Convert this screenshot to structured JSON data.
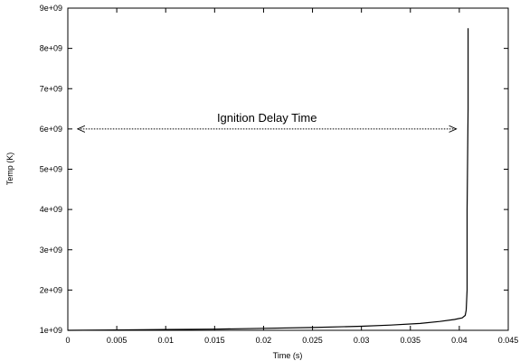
{
  "chart_data": {
    "type": "line",
    "title": "",
    "xlabel": "Time (s)",
    "ylabel": "Temp (K)",
    "xlim": [
      0,
      0.045
    ],
    "ylim": [
      1000000000,
      9000000000
    ],
    "xticks": [
      {
        "value": 0,
        "label": "0"
      },
      {
        "value": 0.005,
        "label": "0.005"
      },
      {
        "value": 0.01,
        "label": "0.01"
      },
      {
        "value": 0.015,
        "label": "0.015"
      },
      {
        "value": 0.02,
        "label": "0.02"
      },
      {
        "value": 0.025,
        "label": "0.025"
      },
      {
        "value": 0.03,
        "label": "0.03"
      },
      {
        "value": 0.035,
        "label": "0.035"
      },
      {
        "value": 0.04,
        "label": "0.04"
      },
      {
        "value": 0.045,
        "label": "0.045"
      }
    ],
    "yticks": [
      {
        "value": 1000000000,
        "label": "1e+09"
      },
      {
        "value": 2000000000,
        "label": "2e+09"
      },
      {
        "value": 3000000000,
        "label": "3e+09"
      },
      {
        "value": 4000000000,
        "label": "4e+09"
      },
      {
        "value": 5000000000,
        "label": "5e+09"
      },
      {
        "value": 6000000000,
        "label": "6e+09"
      },
      {
        "value": 7000000000,
        "label": "7e+09"
      },
      {
        "value": 8000000000,
        "label": "8e+09"
      },
      {
        "value": 9000000000,
        "label": "9e+09"
      }
    ],
    "grid": false,
    "series": [
      {
        "color": "#000000",
        "x": [
          0,
          0.005,
          0.01,
          0.015,
          0.02,
          0.025,
          0.03,
          0.033,
          0.036,
          0.038,
          0.0395,
          0.0403,
          0.0406,
          0.0407,
          0.0408,
          0.0408,
          0.0409,
          0.0409
        ],
        "y": [
          1000000000,
          1010000000,
          1020000000,
          1030000000,
          1050000000,
          1070000000,
          1100000000,
          1130000000,
          1170000000,
          1220000000,
          1270000000,
          1310000000,
          1370000000,
          1500000000,
          2000000000,
          4000000000,
          6500000000,
          8500000000
        ]
      }
    ],
    "annotation": {
      "text": "Ignition Delay Time",
      "x_start": 0.001,
      "x_end": 0.0397,
      "y": 6000000000
    }
  }
}
